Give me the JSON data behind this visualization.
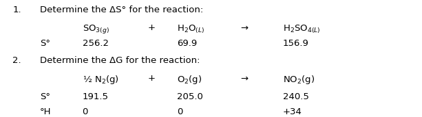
{
  "bg_color": "#ffffff",
  "text_color": "#000000",
  "figsize": [
    6.13,
    1.71
  ],
  "dpi": 100,
  "font_family": "Georgia",
  "base_fs": 9.5,
  "sections": [
    {
      "number": "1.",
      "title": "Determine the ΔS° for the reaction:",
      "row1_col1": "SO$_{3(g)}$",
      "row1_col2": "+",
      "row1_col3": "H$_2$O$_{(L)}$",
      "row1_arrow": "→",
      "row1_col4": "H$_2$SO$_{4(L)}$",
      "row2_label": "S°",
      "row2_col1": "256.2",
      "row2_col3": "69.9",
      "row2_col4": "156.9"
    },
    {
      "number": "2.",
      "title": "Determine the ΔG for the reaction:",
      "row1_col1": "½ N$_2$(g)",
      "row1_col2": "+",
      "row1_col3": "O$_2$(g)",
      "row1_arrow": "→",
      "row1_col4": "NO$_2$(g)",
      "row2_label": "S°",
      "row2_col1": "191.5",
      "row2_col3": "205.0",
      "row2_col4": "240.5",
      "row3_label": "°H",
      "row3_col1": "0",
      "row3_col3": "0",
      "row3_col4": "+34"
    }
  ],
  "col_x": {
    "number": 0.03,
    "title": 0.095,
    "label": 0.095,
    "col1": 0.195,
    "col2": 0.35,
    "col3": 0.42,
    "arrow": 0.57,
    "col4": 0.67
  },
  "y_positions": {
    "s1_title": 0.93,
    "s1_row1": 0.7,
    "s1_row2": 0.5,
    "s2_title": 0.28,
    "s2_row1": 0.05,
    "s2_row2": -0.18,
    "s2_row3": -0.38
  }
}
